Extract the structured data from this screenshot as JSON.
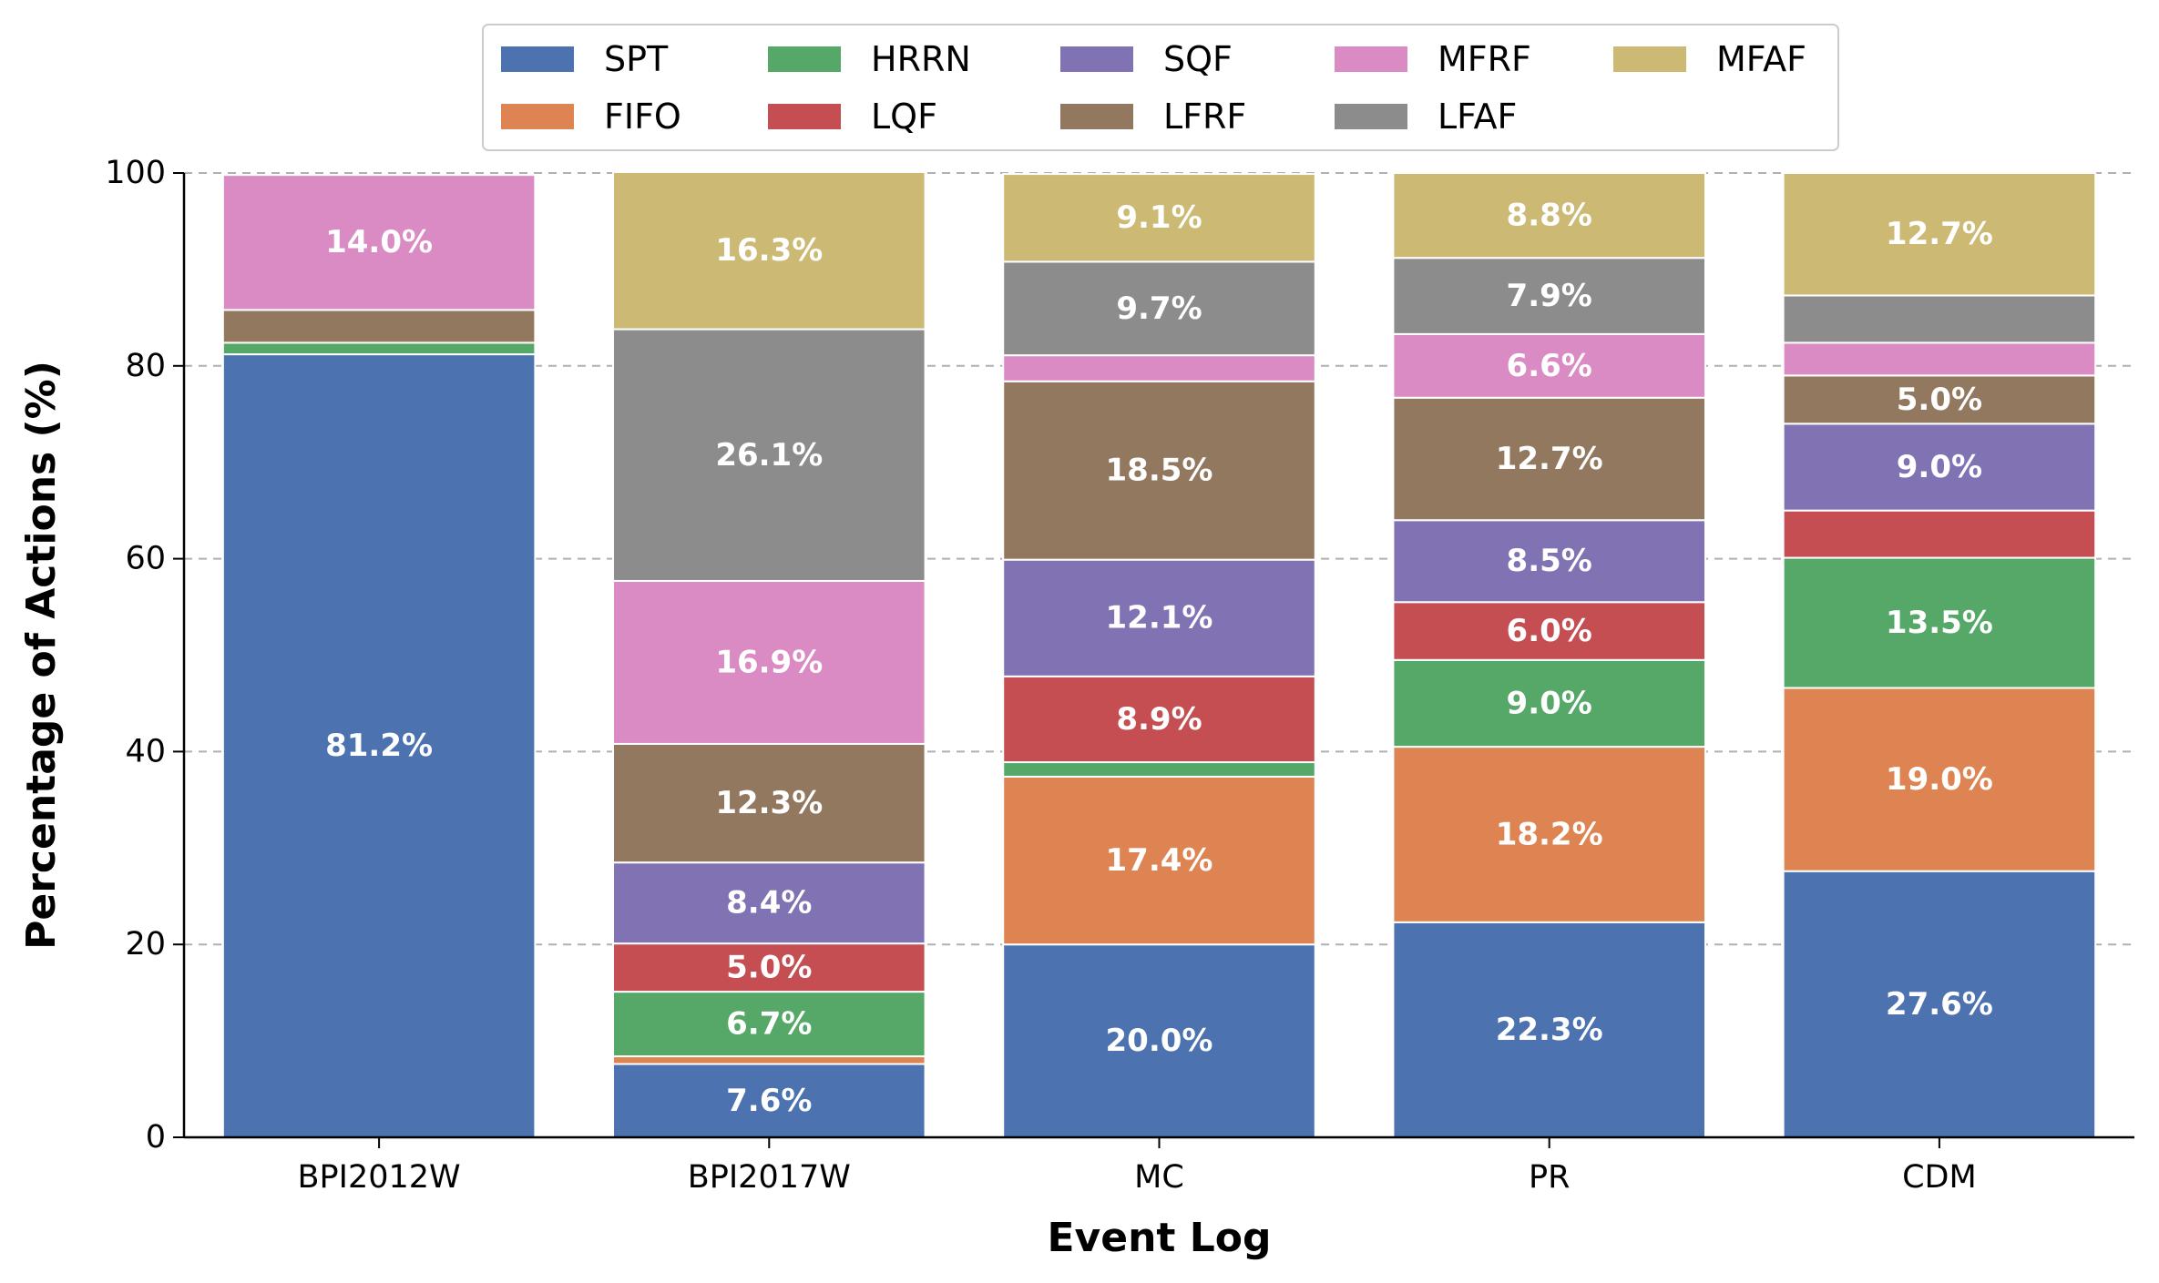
{
  "chart_data": {
    "type": "bar",
    "stacked": true,
    "xlabel": "Event Log",
    "ylabel": "Percentage of Actions (%)",
    "ylim": [
      0,
      100
    ],
    "yticks": [
      0,
      20,
      40,
      60,
      80,
      100
    ],
    "grid": "horizontal dashed",
    "legend_position": "top",
    "categories": [
      "BPI2012W",
      "BPI2017W",
      "MC",
      "PR",
      "CDM"
    ],
    "series": [
      {
        "name": "SPT",
        "color": "#4c72b0",
        "values": [
          81.2,
          7.6,
          20.0,
          22.3,
          27.6
        ]
      },
      {
        "name": "FIFO",
        "color": "#dd8452",
        "values": [
          0.0,
          0.8,
          17.4,
          18.2,
          19.0
        ]
      },
      {
        "name": "HRRN",
        "color": "#55a868",
        "values": [
          1.2,
          6.7,
          1.5,
          9.0,
          13.5
        ]
      },
      {
        "name": "LQF",
        "color": "#c44e52",
        "values": [
          0.0,
          5.0,
          8.9,
          6.0,
          4.9
        ]
      },
      {
        "name": "SQF",
        "color": "#8172b3",
        "values": [
          0.0,
          8.4,
          12.1,
          8.5,
          9.0
        ]
      },
      {
        "name": "LFRF",
        "color": "#937860",
        "values": [
          3.4,
          12.3,
          18.5,
          12.7,
          5.0
        ]
      },
      {
        "name": "MFRF",
        "color": "#da8bc3",
        "values": [
          14.0,
          16.9,
          2.7,
          6.6,
          3.4
        ]
      },
      {
        "name": "LFAF",
        "color": "#8c8c8c",
        "values": [
          0.0,
          26.1,
          9.7,
          7.9,
          4.9
        ]
      },
      {
        "name": "MFAF",
        "color": "#ccb974",
        "values": [
          0.0,
          16.3,
          9.1,
          8.8,
          12.7
        ]
      }
    ],
    "segment_labels": [
      [
        "81.2%",
        "",
        "",
        "",
        "",
        "",
        "14.0%",
        "",
        ""
      ],
      [
        "7.6%",
        "",
        "6.7%",
        "5.0%",
        "8.4%",
        "12.3%",
        "16.9%",
        "26.1%",
        "16.3%"
      ],
      [
        "20.0%",
        "17.4%",
        "",
        "8.9%",
        "12.1%",
        "18.5%",
        "",
        "9.7%",
        "9.1%"
      ],
      [
        "22.3%",
        "18.2%",
        "9.0%",
        "6.0%",
        "8.5%",
        "12.7%",
        "6.6%",
        "7.9%",
        "8.8%"
      ],
      [
        "27.6%",
        "19.0%",
        "13.5%",
        "",
        "9.0%",
        "5.0%",
        "",
        "",
        "12.7%"
      ]
    ],
    "legend_order": [
      "SPT",
      "FIFO",
      "HRRN",
      "LQF",
      "SQF",
      "LFRF",
      "MFRF",
      "LFAF",
      "MFAF"
    ]
  }
}
